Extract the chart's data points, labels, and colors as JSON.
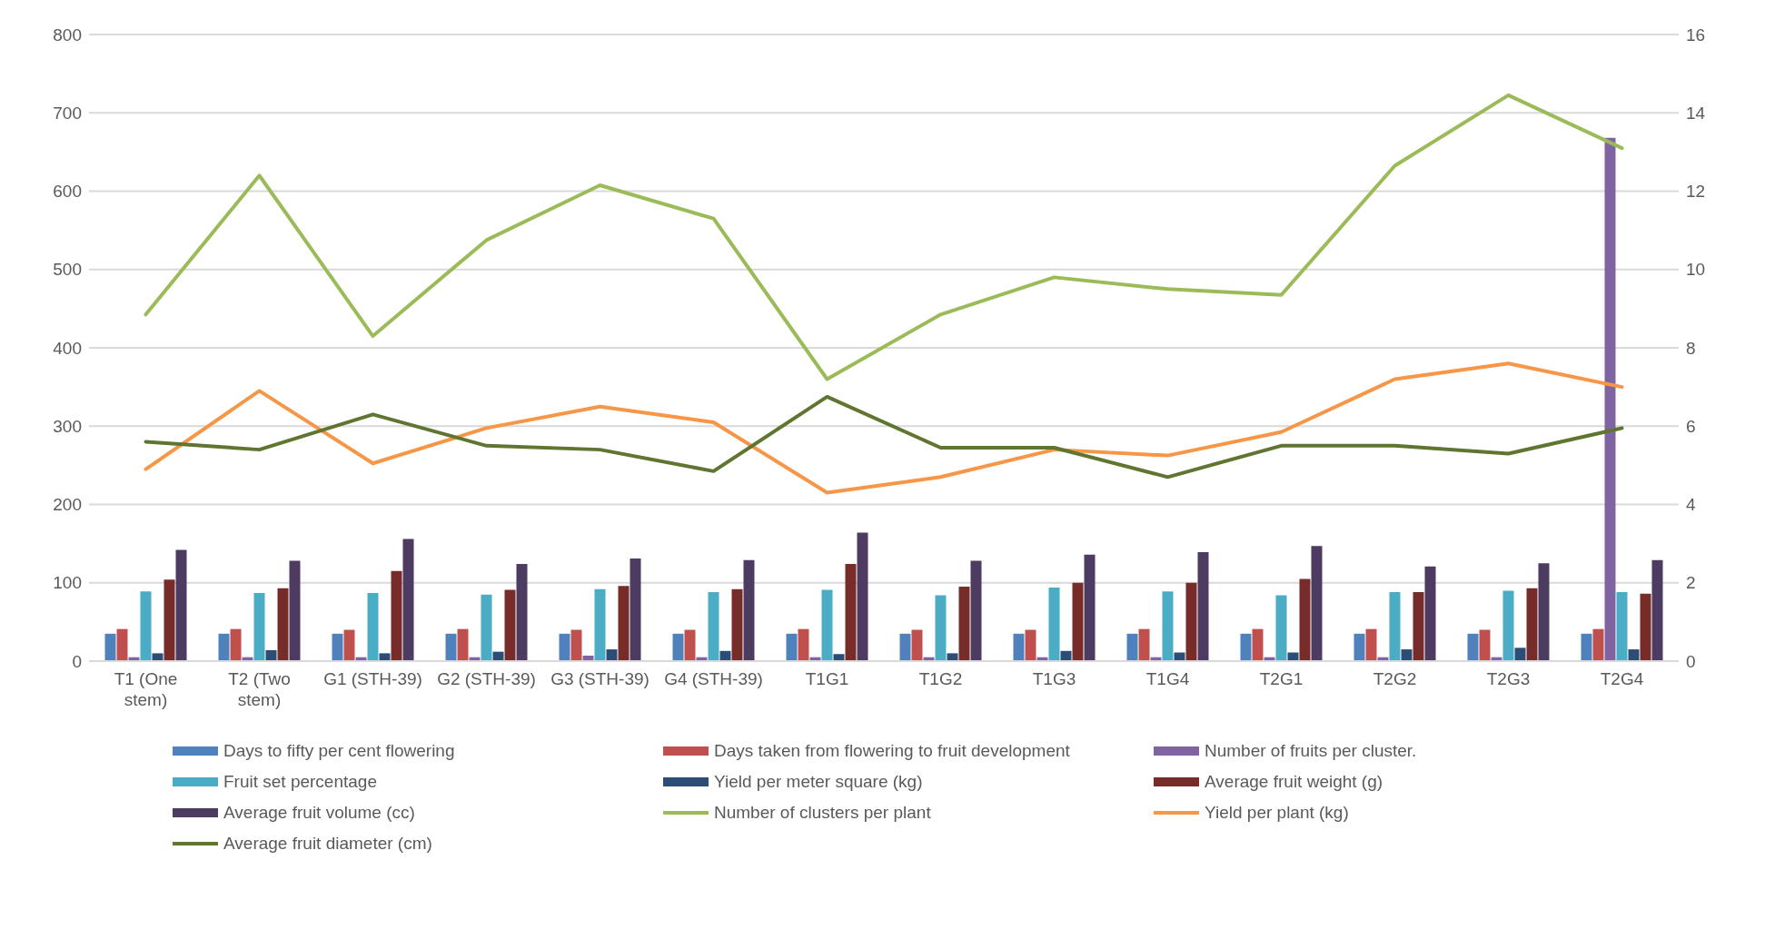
{
  "chart_data": {
    "type": "bar",
    "categories": [
      "T1 (One stem)",
      "T2 (Two stem)",
      "G1 (STH-39)",
      "G2 (STH-39)",
      "G3 (STH-39)",
      "G4 (STH-39)",
      "T1G1",
      "T1G2",
      "T1G3",
      "T1G4",
      "T2G1",
      "T2G2",
      "T2G3",
      "T2G4"
    ],
    "series": [
      {
        "name": "Days to fifty per cent flowering",
        "color": "#4f81bd",
        "values": [
          35,
          35,
          35,
          35,
          35,
          35,
          35,
          35,
          35,
          35,
          35,
          35,
          35,
          35
        ]
      },
      {
        "name": "Days taken from flowering to fruit development",
        "color": "#c0504d",
        "values": [
          41,
          41,
          40,
          41,
          40,
          40,
          41,
          40,
          40,
          41,
          41,
          41,
          40,
          41
        ]
      },
      {
        "name": "Number of fruits per cluster.",
        "color": "#8064a2",
        "values": [
          5,
          5,
          5,
          5,
          7,
          5,
          5,
          5,
          5,
          5,
          5,
          5,
          5,
          668
        ]
      },
      {
        "name": "Fruit set percentage",
        "color": "#4bacc6",
        "values": [
          89,
          87,
          87,
          85,
          92,
          88,
          91,
          84,
          94,
          89,
          84,
          88,
          90,
          88
        ]
      },
      {
        "name": "Yield per meter square (kg)",
        "color": "#2c4d75",
        "values": [
          10,
          14,
          10,
          12,
          15,
          13,
          9,
          10,
          13,
          11,
          11,
          15,
          17,
          15
        ]
      },
      {
        "name": "Average fruit weight (g)",
        "color": "#772c2a",
        "values": [
          104,
          93,
          115,
          91,
          96,
          92,
          124,
          95,
          100,
          100,
          105,
          88,
          93,
          86
        ]
      },
      {
        "name": "Average fruit volume (cc)",
        "color": "#4d3b62",
        "values": [
          142,
          128,
          156,
          124,
          131,
          129,
          164,
          128,
          136,
          139,
          147,
          121,
          125,
          129
        ]
      },
      {
        "name": "Number of clusters per plant",
        "color": "#9bbb59",
        "type": "line",
        "axis": "y2",
        "values": [
          8.85,
          12.4,
          8.3,
          10.75,
          12.15,
          11.3,
          7.2,
          8.85,
          9.8,
          9.5,
          9.35,
          12.65,
          14.45,
          13.1
        ]
      },
      {
        "name": "Yield per plant (kg)",
        "color": "#f79646",
        "type": "line",
        "axis": "y2",
        "values": [
          4.9,
          6.9,
          5.05,
          5.95,
          6.5,
          6.1,
          4.3,
          4.7,
          5.4,
          5.25,
          5.85,
          7.2,
          7.6,
          7.0
        ]
      },
      {
        "name": "Average fruit diameter (cm)",
        "color": "#5f7530",
        "type": "line",
        "axis": "y2",
        "values": [
          5.6,
          5.4,
          6.3,
          5.5,
          5.4,
          4.85,
          6.75,
          5.45,
          5.45,
          4.7,
          5.5,
          5.5,
          5.3,
          5.95
        ]
      }
    ],
    "ylim": [
      0,
      800
    ],
    "yticks": [
      0,
      100,
      200,
      300,
      400,
      500,
      600,
      700,
      800
    ],
    "y2lim": [
      0,
      16
    ],
    "y2ticks": [
      0,
      2,
      4,
      6,
      8,
      10,
      12,
      14,
      16
    ],
    "grid": "y",
    "legend": "bottom",
    "marker": "none",
    "line_style": "solid"
  }
}
